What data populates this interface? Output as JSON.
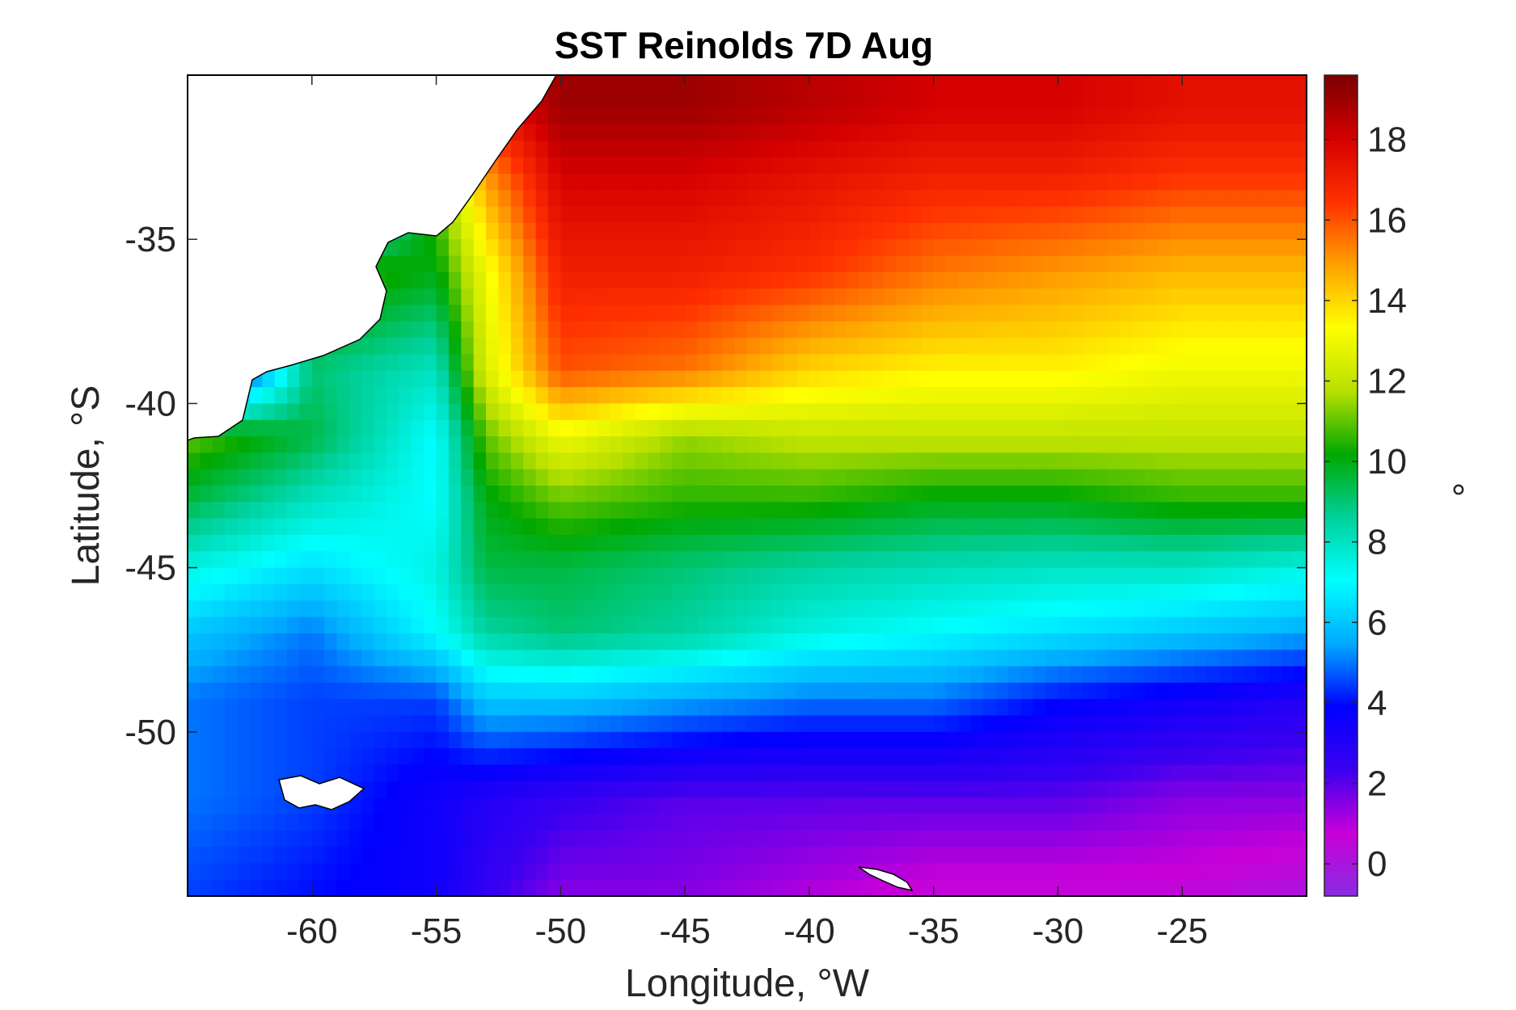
{
  "chart_data": {
    "type": "heatmap",
    "title": "SST Reinolds 7D Aug",
    "xlabel": "Longitude, °W",
    "ylabel": "Latitude, °S",
    "colorbar_label": "°",
    "xlim": [
      -65,
      -20
    ],
    "ylim": [
      -55,
      -30
    ],
    "xticks": [
      -60,
      -55,
      -50,
      -45,
      -40,
      -35,
      -30,
      -25
    ],
    "yticks": [
      -50,
      -45,
      -40,
      -35
    ],
    "clim": [
      -0.8,
      19.6
    ],
    "colorbar_ticks": [
      0,
      2,
      4,
      6,
      8,
      10,
      12,
      14,
      16,
      18
    ],
    "colormap": [
      "#8a2be2",
      "#c800d8",
      "#3a00f0",
      "#0000ff",
      "#00aaff",
      "#00ffff",
      "#00d09a",
      "#00a800",
      "#b8e000",
      "#ffff00",
      "#ffa000",
      "#ff3000",
      "#d40000",
      "#7a0000"
    ],
    "grid": false,
    "land_color": "#ffffff",
    "lon_grid": [
      -65,
      -60,
      -55,
      -53,
      -50,
      -45,
      -40,
      -35,
      -30,
      -25,
      -20
    ],
    "lat_grid": [
      -31,
      -33,
      -36,
      -39,
      -41,
      -43,
      -45,
      -47,
      -49,
      -52,
      -55
    ],
    "sst": [
      [
        0,
        0,
        15.5,
        17,
        19,
        19,
        18.5,
        18,
        18,
        17.5,
        17.5
      ],
      [
        0,
        0,
        11,
        15,
        18,
        18,
        17.5,
        17,
        17,
        16.5,
        16.5
      ],
      [
        0,
        11,
        10,
        13,
        17,
        17,
        16.5,
        15.5,
        15,
        14.5,
        14.5
      ],
      [
        0,
        9,
        8,
        12.5,
        16,
        15.5,
        14,
        13.5,
        13.5,
        13,
        13
      ],
      [
        11,
        9.5,
        7,
        11,
        13,
        11.5,
        12,
        12,
        12,
        12,
        12
      ],
      [
        9.5,
        8,
        7,
        10,
        11,
        10.5,
        10.5,
        10,
        10,
        10.5,
        10.5
      ],
      [
        7.5,
        6.5,
        7.5,
        9.5,
        9.5,
        9,
        8.5,
        8.2,
        8,
        8,
        7.5
      ],
      [
        6,
        5,
        7,
        8.5,
        9,
        8.5,
        7.5,
        7,
        6.5,
        6,
        5.5
      ],
      [
        5,
        4.5,
        4.5,
        6,
        6,
        5.5,
        5,
        5,
        4,
        3.5,
        3
      ],
      [
        5,
        4.5,
        3.5,
        3,
        2.5,
        2,
        2,
        2,
        2,
        1.5,
        1.5
      ],
      [
        4.5,
        4,
        3.5,
        2.5,
        1.5,
        1.5,
        1,
        0.5,
        0.5,
        0.5,
        0
      ]
    ]
  }
}
